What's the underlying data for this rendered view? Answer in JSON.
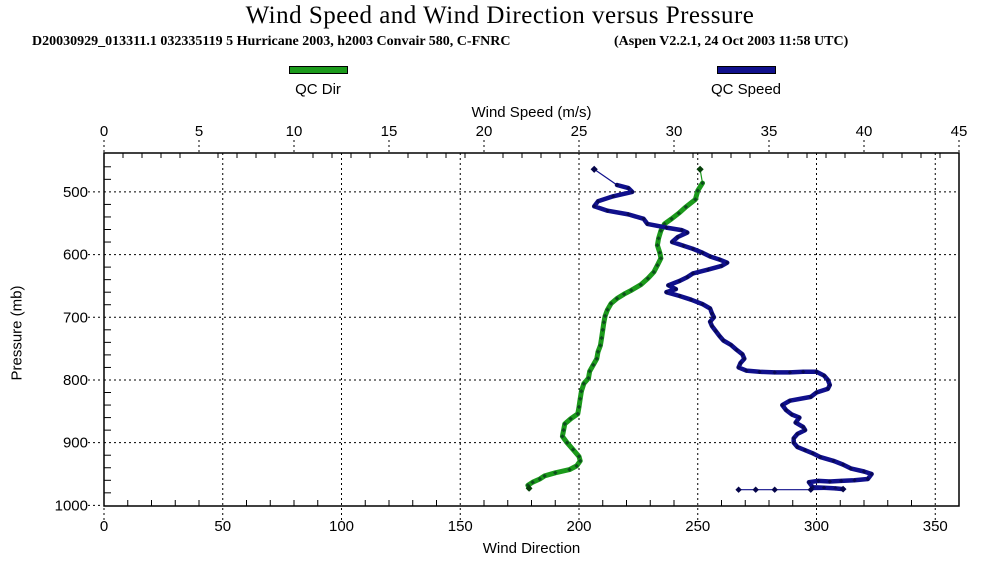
{
  "title": "Wind Speed and Wind Direction versus Pressure",
  "subtitle_left": "D20030929_013311.1 032335119 5 Hurricane 2003, h2003 Convair 580, C-FNRC",
  "subtitle_right": "(Aspen V2.2.1, 24 Oct 2003  11:58 UTC)",
  "legend": [
    {
      "label": "QC Dir",
      "color": "#1b9a1b"
    },
    {
      "label": "QC Speed",
      "color": "#10108c"
    }
  ],
  "chart_data": {
    "type": "line",
    "grid": "dashed",
    "speed_axis": {
      "label": "Wind Speed (m/s)",
      "range": [
        0,
        45
      ],
      "major_ticks": [
        0,
        5,
        10,
        15,
        20,
        25,
        30,
        35,
        40,
        45
      ],
      "minor_step": 1,
      "position": "top"
    },
    "direction_axis": {
      "label": "Wind Direction",
      "range": [
        0,
        360
      ],
      "major_ticks": [
        0,
        50,
        100,
        150,
        200,
        250,
        300,
        350
      ],
      "minor_step": 10,
      "position": "bottom"
    },
    "pressure_axis": {
      "label": "Pressure (mb)",
      "range": [
        438,
        1001
      ],
      "major_ticks": [
        500,
        600,
        700,
        800,
        900,
        1000
      ],
      "minor_step": 20,
      "inverted": true,
      "position": "left"
    },
    "series": [
      {
        "id": "qc-dir",
        "name": "QC Dir",
        "axis": "direction",
        "color": "#1b9a1b",
        "marker_color": "#07400a",
        "width": 5,
        "lead_in": [
          [
            251,
            464
          ]
        ],
        "points": [
          [
            252,
            486
          ],
          [
            250,
            498
          ],
          [
            249,
            512
          ],
          [
            245,
            524
          ],
          [
            242,
            534
          ],
          [
            239,
            543
          ],
          [
            236,
            551
          ],
          [
            234.5,
            562
          ],
          [
            233.5,
            574
          ],
          [
            233,
            585
          ],
          [
            234,
            597
          ],
          [
            234.5,
            606
          ],
          [
            233,
            617
          ],
          [
            231.5,
            628
          ],
          [
            229,
            638
          ],
          [
            226,
            648
          ],
          [
            222,
            657
          ],
          [
            219,
            663
          ],
          [
            216,
            670
          ],
          [
            213.5,
            678
          ],
          [
            212,
            688
          ],
          [
            211,
            698
          ],
          [
            210.5,
            708
          ],
          [
            210,
            720
          ],
          [
            209.5,
            733
          ],
          [
            209,
            745
          ],
          [
            208,
            755
          ],
          [
            207.5,
            766
          ],
          [
            206,
            776
          ],
          [
            204.5,
            786
          ],
          [
            204,
            797
          ],
          [
            202,
            806
          ],
          [
            201,
            818
          ],
          [
            200.5,
            830
          ],
          [
            200,
            843
          ],
          [
            199.5,
            854
          ],
          [
            196.5,
            862
          ],
          [
            194,
            870
          ],
          [
            193.5,
            880
          ],
          [
            193,
            890
          ],
          [
            195,
            900
          ],
          [
            197.5,
            911
          ],
          [
            200,
            922
          ],
          [
            200.5,
            929
          ],
          [
            199,
            937
          ],
          [
            196,
            943
          ],
          [
            190,
            948
          ],
          [
            185.5,
            953
          ],
          [
            183.5,
            958
          ],
          [
            180.5,
            963
          ],
          [
            178.5,
            968
          ],
          [
            179,
            973
          ]
        ],
        "tail": []
      },
      {
        "id": "qc-speed",
        "name": "QC Speed",
        "axis": "speed",
        "color": "#10108c",
        "marker_color": "#05054a",
        "width": 4.5,
        "lead_in": [
          [
            25.8,
            464
          ]
        ],
        "points": [
          [
            27.0,
            489
          ],
          [
            27.6,
            494
          ],
          [
            27.8,
            500
          ],
          [
            26.8,
            507
          ],
          [
            26.0,
            515
          ],
          [
            25.8,
            523
          ],
          [
            26.5,
            530
          ],
          [
            27.6,
            536
          ],
          [
            28.4,
            543
          ],
          [
            28.6,
            551
          ],
          [
            29.6,
            557
          ],
          [
            30.4,
            561
          ],
          [
            30.7,
            565
          ],
          [
            30.2,
            572
          ],
          [
            29.9,
            580
          ],
          [
            30.5,
            586
          ],
          [
            31.0,
            591
          ],
          [
            31.5,
            597
          ],
          [
            31.9,
            603
          ],
          [
            32.4,
            608
          ],
          [
            32.8,
            613
          ],
          [
            32.5,
            618
          ],
          [
            31.8,
            624
          ],
          [
            31.0,
            630
          ],
          [
            30.7,
            636
          ],
          [
            30.3,
            642
          ],
          [
            29.7,
            649
          ],
          [
            30.1,
            655
          ],
          [
            29.6,
            660
          ],
          [
            30.3,
            666
          ],
          [
            30.9,
            672
          ],
          [
            31.5,
            679
          ],
          [
            31.9,
            686
          ],
          [
            32.0,
            694
          ],
          [
            32.1,
            700
          ],
          [
            31.9,
            707
          ],
          [
            32.0,
            714
          ],
          [
            32.2,
            722
          ],
          [
            32.4,
            730
          ],
          [
            32.6,
            737
          ],
          [
            33.0,
            744
          ],
          [
            33.3,
            752
          ],
          [
            33.6,
            759
          ],
          [
            33.7,
            766
          ],
          [
            33.5,
            773
          ],
          [
            33.4,
            780
          ],
          [
            33.8,
            785
          ],
          [
            34.5,
            787
          ],
          [
            35.3,
            788
          ],
          [
            36.1,
            788
          ],
          [
            36.8,
            787
          ],
          [
            37.5,
            787
          ],
          [
            37.9,
            793
          ],
          [
            38.1,
            800
          ],
          [
            38.2,
            808
          ],
          [
            38.1,
            814
          ],
          [
            37.5,
            820
          ],
          [
            37.2,
            827
          ],
          [
            36.1,
            833
          ],
          [
            35.7,
            840
          ],
          [
            35.9,
            848
          ],
          [
            36.2,
            855
          ],
          [
            36.6,
            860
          ],
          [
            36.4,
            868
          ],
          [
            36.8,
            875
          ],
          [
            36.9,
            880
          ],
          [
            36.5,
            886
          ],
          [
            36.3,
            893
          ],
          [
            36.3,
            900
          ],
          [
            36.5,
            907
          ],
          [
            36.9,
            912
          ],
          [
            37.3,
            917
          ],
          [
            37.7,
            923
          ],
          [
            38.4,
            929
          ],
          [
            38.9,
            935
          ],
          [
            39.3,
            941
          ],
          [
            40.0,
            946
          ],
          [
            40.4,
            950
          ],
          [
            40.2,
            958
          ],
          [
            39.5,
            960
          ],
          [
            38.8,
            961
          ],
          [
            38.2,
            962
          ],
          [
            37.6,
            961
          ],
          [
            37.1,
            963
          ],
          [
            37.3,
            971
          ],
          [
            37.9,
            972
          ],
          [
            38.5,
            973
          ],
          [
            38.9,
            974
          ]
        ],
        "tail": [
          [
            37.2,
            975
          ],
          [
            35.3,
            975
          ],
          [
            34.3,
            975
          ],
          [
            33.4,
            975
          ]
        ]
      }
    ]
  }
}
